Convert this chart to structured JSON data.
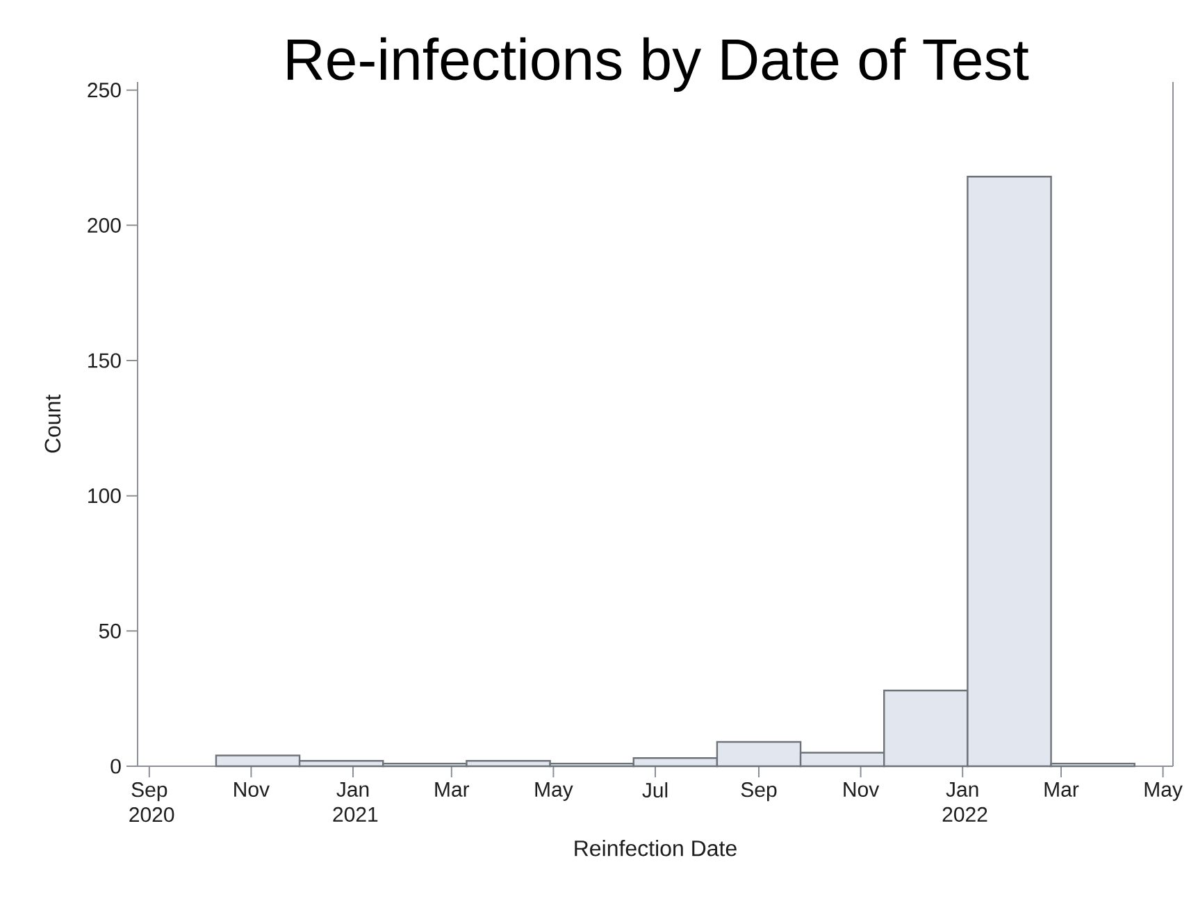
{
  "chart_data": {
    "type": "histogram",
    "title": "Re-infections by Date of Test",
    "xlabel": "Reinfection Date",
    "ylabel": "Count",
    "bins": [
      "2020-10-11",
      "2020-11-30",
      "2021-01-19",
      "2021-03-10",
      "2021-04-29",
      "2021-06-18",
      "2021-08-07",
      "2021-09-26",
      "2021-11-15",
      "2022-01-04",
      "2022-02-23",
      "2022-04-14"
    ],
    "values": [
      4,
      2,
      1,
      2,
      1,
      3,
      9,
      5,
      28,
      218,
      1
    ],
    "color": "#e1e6ef",
    "xlim": [
      "2020-08-25",
      "2022-05-07"
    ],
    "ylim": [
      0,
      253
    ],
    "yticks": [
      0,
      50,
      100,
      150,
      200,
      250
    ],
    "xticks": [
      {
        "value": "2020-09-01",
        "label": "Sep 2020"
      },
      {
        "value": "2020-11-01",
        "label": "Nov"
      },
      {
        "value": "2021-01-01",
        "label": "Jan 2021"
      },
      {
        "value": "2021-03-01",
        "label": "Mar"
      },
      {
        "value": "2021-05-01",
        "label": "May"
      },
      {
        "value": "2021-07-01",
        "label": "Jul"
      },
      {
        "value": "2021-09-01",
        "label": "Sep"
      },
      {
        "value": "2021-11-01",
        "label": "Nov"
      },
      {
        "value": "2022-01-01",
        "label": "Jan 2022"
      },
      {
        "value": "2022-03-01",
        "label": "Mar"
      },
      {
        "value": "2022-05-01",
        "label": "May"
      }
    ]
  }
}
